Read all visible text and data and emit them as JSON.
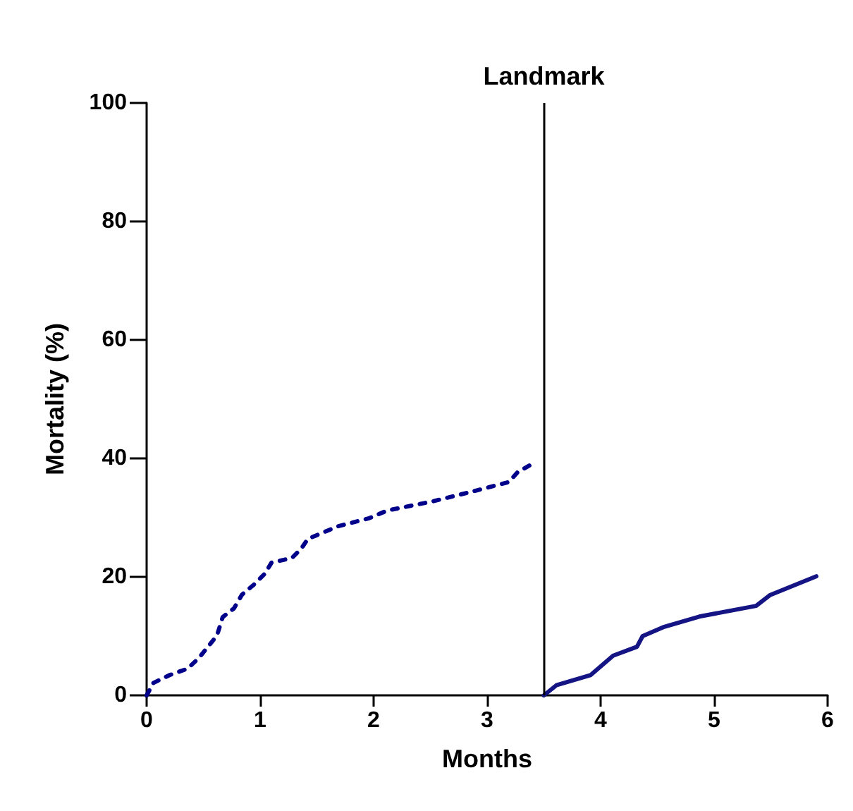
{
  "chart_data": {
    "type": "line",
    "xlabel": "Months",
    "ylabel": "Mortality (%)",
    "xlim": [
      0,
      6
    ],
    "xticks": [
      0,
      1,
      2,
      3,
      4,
      5,
      6
    ],
    "ylim": [
      0,
      100
    ],
    "yticks": [
      0,
      20,
      40,
      60,
      80,
      100
    ],
    "grid": false,
    "marker": "none",
    "series": [
      {
        "color": "#00008b",
        "line_style": "dotted",
        "x": [
          0,
          0.06,
          0.2,
          0.36,
          0.46,
          0.62,
          0.67,
          0.77,
          0.84,
          0.94,
          1.04,
          1.1,
          1.28,
          1.36,
          1.42,
          1.68,
          1.96,
          2.12,
          2.51,
          2.91,
          3.19,
          3.27,
          3.41
        ],
        "values": [
          0,
          2.1,
          3.4,
          4.5,
          6.3,
          10.1,
          13.2,
          14.7,
          17,
          18.6,
          20.5,
          22.4,
          23.2,
          24.7,
          26.4,
          28.5,
          29.9,
          31.2,
          32.7,
          34.6,
          36,
          37.7,
          39.2
        ]
      },
      {
        "color": "#141485",
        "line_style": "solid",
        "x": [
          3.5,
          3.61,
          3.91,
          4.11,
          4.32,
          4.37,
          4.55,
          4.87,
          5.37,
          5.49,
          5.9
        ],
        "values": [
          0,
          1.7,
          3.4,
          6.7,
          8.2,
          10,
          11.5,
          13.3,
          15.1,
          16.9,
          20.1
        ]
      }
    ],
    "ref_lines": [
      {
        "axis": "x",
        "value": 3.5,
        "label": "Landmark",
        "color": "#000000",
        "line_style": "solid"
      }
    ]
  }
}
